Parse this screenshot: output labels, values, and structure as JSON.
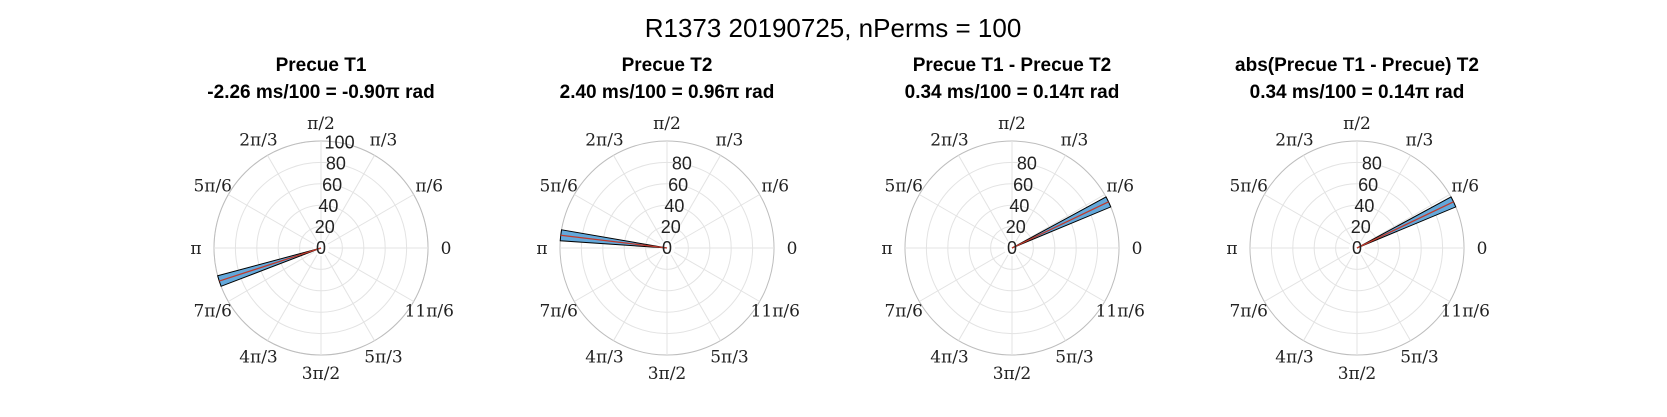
{
  "title": "R1373 20190725, nPerms = 100",
  "colors": {
    "bar_fill": "#63A8DA",
    "bar_edge": "#000000",
    "mean_line": "#C0392B",
    "grid": "#e3e3e3"
  },
  "angle_labels": [
    "0",
    "π/6",
    "π/3",
    "π/2",
    "2π/3",
    "5π/6",
    "π",
    "7π/6",
    "4π/3",
    "3π/2",
    "5π/3",
    "11π/6"
  ],
  "chart_data": [
    {
      "type": "polar-histogram",
      "title": "Precue T1",
      "subtitle": "-2.26 ms/100 = -0.90π rad",
      "rlim": [
        0,
        100
      ],
      "rticks": [
        "0",
        "20",
        "40",
        "60",
        "80",
        "100"
      ],
      "rtick_values": [
        0,
        20,
        40,
        60,
        80,
        100
      ],
      "bins": [
        {
          "angle_center_pi": 1.1,
          "width_pi": 0.033,
          "count": 100
        }
      ],
      "mean_angle_pi": 1.1,
      "mean_length": 100
    },
    {
      "type": "polar-histogram",
      "title": "Precue T2",
      "subtitle": "2.40 ms/100 = 0.96π rad",
      "rlim": [
        0,
        100
      ],
      "rticks": [
        "0",
        "20",
        "40",
        "60",
        "80"
      ],
      "rtick_values": [
        0,
        20,
        40,
        60,
        80
      ],
      "bins": [
        {
          "angle_center_pi": 0.962,
          "width_pi": 0.033,
          "count": 100
        }
      ],
      "mean_angle_pi": 0.962,
      "mean_length": 100
    },
    {
      "type": "polar-histogram",
      "title": "Precue T1 - Precue T2",
      "subtitle": "0.34 ms/100 = 0.14π rad",
      "rlim": [
        0,
        100
      ],
      "rticks": [
        "0",
        "20",
        "40",
        "60",
        "80"
      ],
      "rtick_values": [
        0,
        20,
        40,
        60,
        80
      ],
      "bins": [
        {
          "angle_center_pi": 0.142,
          "width_pi": 0.033,
          "count": 100
        }
      ],
      "mean_angle_pi": 0.142,
      "mean_length": 100
    },
    {
      "type": "polar-histogram",
      "title": "abs(Precue T1 - Precue) T2",
      "subtitle": "0.34 ms/100 = 0.14π rad",
      "rlim": [
        0,
        100
      ],
      "rticks": [
        "0",
        "20",
        "40",
        "60",
        "80"
      ],
      "rtick_values": [
        0,
        20,
        40,
        60,
        80
      ],
      "bins": [
        {
          "angle_center_pi": 0.142,
          "width_pi": 0.033,
          "count": 100
        }
      ],
      "mean_angle_pi": 0.142,
      "mean_length": 100
    }
  ]
}
